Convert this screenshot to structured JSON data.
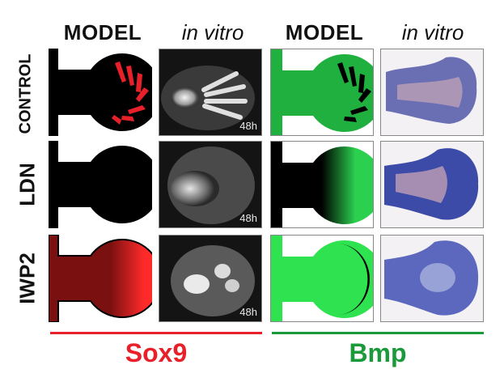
{
  "columns": {
    "model_1": "MODEL",
    "vitro_1": "in vitro",
    "model_2": "MODEL",
    "vitro_2": "in vitro"
  },
  "rows": [
    "CONTROL",
    "LDN",
    "IWP2"
  ],
  "timestamp": "48h",
  "genes": {
    "left": "Sox9",
    "right": "Bmp"
  },
  "colors": {
    "sox9": "#e8202a",
    "bmp": "#1a9a3a",
    "model_bg_sox": "#000000",
    "model_bg_bmp": "#000000"
  }
}
